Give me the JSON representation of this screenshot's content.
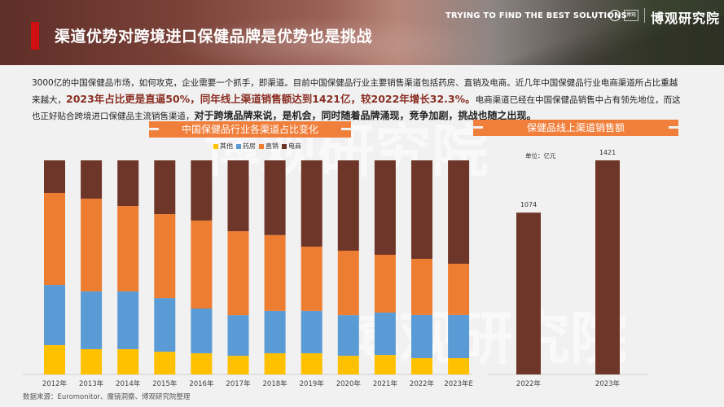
{
  "header": {
    "title": "渠道优势对跨境进口保健品牌是优势也是挑战",
    "tagline": "TRYING TO FIND THE BEST SOLUTIONS",
    "separator": "/",
    "logo_mark_text": "博观",
    "brand": "博观研究院",
    "accent_color": "#d10f10"
  },
  "intro": {
    "part1": "3000亿的中国保健品市场，如何攻克，企业需要一个抓手，即渠道。目前中国保健品行业主要销售渠道包括药房、直销及电商。近几年中国保健品行业电商渠道所占比重越来越大，",
    "highlight1": "2023年占比更是直逼50%，同年线上渠道销售额达到1421亿，较2022年增长32.3%。",
    "part2": "电商渠道已经在中国保健品销售中占有领先地位，而这也正好贴合跨境进口保健品主流销售渠道，",
    "bold1": "对于跨境品牌来说，是机会，同时随着品牌涌现，竞争加剧，挑战也随之出现。"
  },
  "watermark": "博观研究院",
  "source": "数据来源：Euromonitor、魔镜洞察、博观研究院整理",
  "chart_data": [
    {
      "type": "bar",
      "stacked": true,
      "percent": true,
      "title": "中国保健品行业各渠道占比变化",
      "legend_position": "top",
      "categories": [
        "2012年",
        "2013年",
        "2014年",
        "2015年",
        "2016年",
        "2017年",
        "2018年",
        "2019年",
        "2020年",
        "2021年",
        "2022年",
        "2023年E"
      ],
      "series": [
        {
          "name": "其他",
          "color": "#ffc000",
          "values": [
            13.7,
            11.8,
            11.8,
            10.6,
            9.9,
            8.7,
            9.9,
            9.9,
            8.7,
            9.1,
            7.6,
            7.6
          ]
        },
        {
          "name": "药房",
          "color": "#5b9bd5",
          "values": [
            28.1,
            27.0,
            27.0,
            25.1,
            20.9,
            19.0,
            19.8,
            19.8,
            19.0,
            19.8,
            20.2,
            20.2
          ]
        },
        {
          "name": "直销",
          "color": "#ed7d31",
          "values": [
            43.0,
            43.3,
            39.9,
            39.2,
            41.1,
            39.2,
            35.4,
            30.0,
            30.1,
            27.0,
            26.2,
            23.9
          ]
        },
        {
          "name": "电商",
          "color": "#6e3629",
          "values": [
            15.2,
            17.9,
            21.3,
            25.1,
            28.1,
            33.1,
            34.9,
            40.3,
            42.2,
            44.1,
            46.0,
            48.3
          ]
        }
      ],
      "ylim": [
        0,
        100
      ],
      "xlabel": "",
      "ylabel": "",
      "grid": false
    },
    {
      "type": "bar",
      "title": "保健品线上渠道销售额",
      "unit_label": "单位：亿元",
      "categories": [
        "2022年",
        "2023年"
      ],
      "values": [
        1074,
        1421
      ],
      "data_labels": [
        "1074",
        "1421"
      ],
      "color": "#6e3629",
      "ylim": [
        0,
        1421
      ],
      "xlabel": "",
      "ylabel": "",
      "grid": false
    }
  ]
}
